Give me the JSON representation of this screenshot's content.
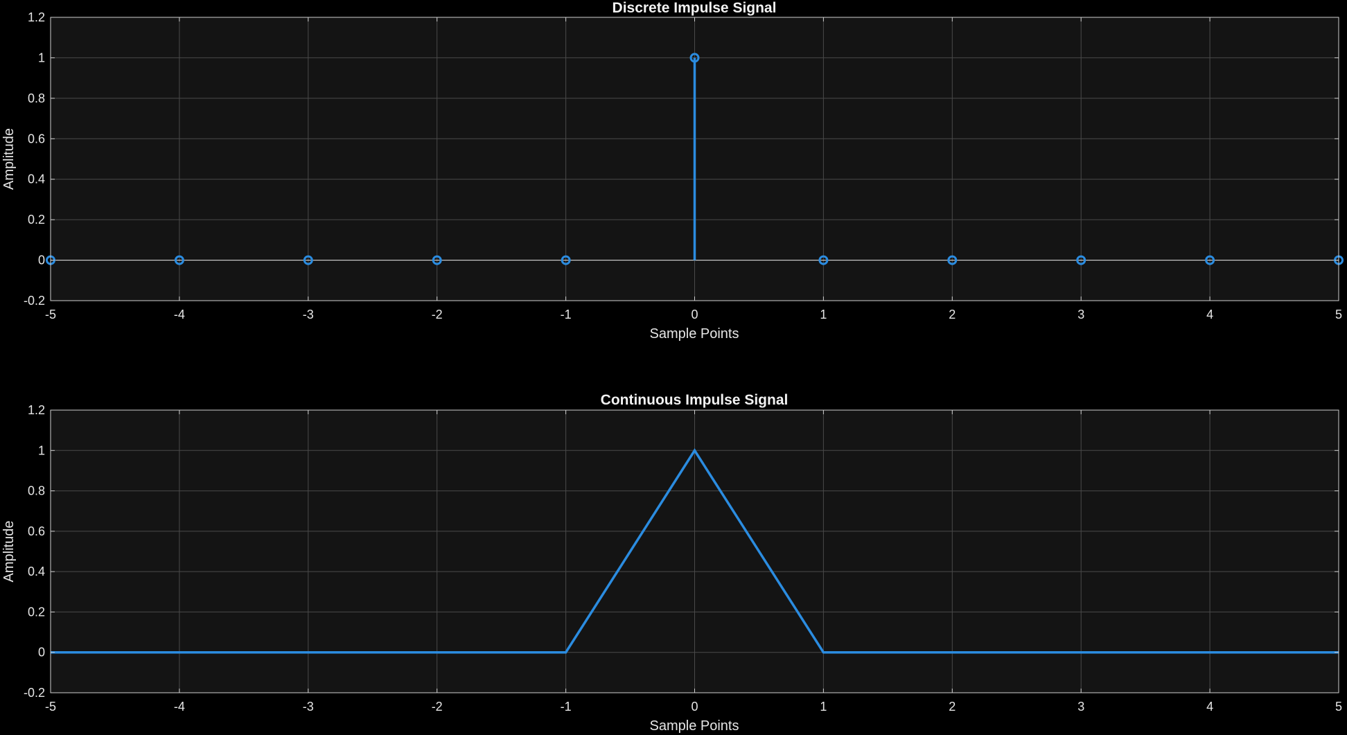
{
  "colors": {
    "figure_background": "#000000",
    "axes_background": "#141414",
    "grid": "#4a4a4a",
    "axis_line": "#cfcfcf",
    "series": "#2b8ce0",
    "text": "#e6e6e6"
  },
  "chart_data": [
    {
      "type": "stem",
      "title": "Discrete Impulse Signal",
      "xlabel": "Sample Points",
      "ylabel": "Amplitude",
      "xlim": [
        -5,
        5
      ],
      "ylim": [
        -0.2,
        1.2
      ],
      "xticks": [
        -5,
        -4,
        -3,
        -2,
        -1,
        0,
        1,
        2,
        3,
        4,
        5
      ],
      "yticks": [
        -0.2,
        0,
        0.2,
        0.4,
        0.6,
        0.8,
        1,
        1.2
      ],
      "grid": true,
      "baseline": 0,
      "series": [
        {
          "x": [
            -5,
            -4,
            -3,
            -2,
            -1,
            0,
            1,
            2,
            3,
            4,
            5
          ],
          "y": [
            0,
            0,
            0,
            0,
            0,
            1,
            0,
            0,
            0,
            0,
            0
          ],
          "marker": "circle"
        }
      ]
    },
    {
      "type": "line",
      "title": "Continuous Impulse Signal",
      "xlabel": "Sample Points",
      "ylabel": "Amplitude",
      "xlim": [
        -5,
        5
      ],
      "ylim": [
        -0.2,
        1.2
      ],
      "xticks": [
        -5,
        -4,
        -3,
        -2,
        -1,
        0,
        1,
        2,
        3,
        4,
        5
      ],
      "yticks": [
        -0.2,
        0,
        0.2,
        0.4,
        0.6,
        0.8,
        1,
        1.2
      ],
      "grid": true,
      "series": [
        {
          "x": [
            -5,
            -4,
            -3,
            -2,
            -1,
            0,
            1,
            2,
            3,
            4,
            5
          ],
          "y": [
            0,
            0,
            0,
            0,
            0,
            1,
            0,
            0,
            0,
            0,
            0
          ]
        }
      ]
    }
  ]
}
